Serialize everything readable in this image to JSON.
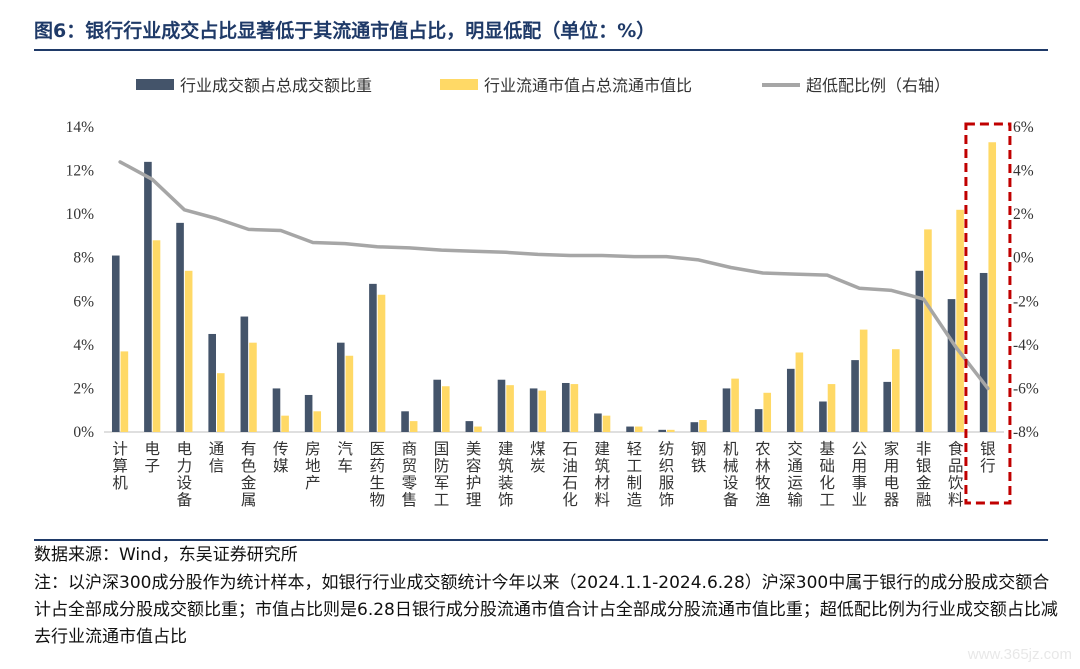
{
  "title": "图6：银行行业成交占比显著低于其流通市值占比，明显低配（单位：%）",
  "source": "数据来源：Wind，东吴证券研究所",
  "note": "注：以沪深300成分股作为统计样本，如银行行业成交额统计今年以来（2024.1.1-2024.6.28）沪深300中属于银行的成分股成交额合计占全部成分股成交额比重；市值占比则是6.28日银行成分股流通市值合计占全部成分股流通市值比重；超低配比例为行业成交额占比减去行业流通市值占比",
  "watermark": "www.365jz.com",
  "chart_data": {
    "type": "bar",
    "categories": [
      "计算机",
      "电子",
      "电力设备",
      "通信",
      "有色金属",
      "传媒",
      "房地产",
      "汽车",
      "医药生物",
      "商贸零售",
      "国防军工",
      "美容护理",
      "建筑装饰",
      "煤炭",
      "石油石化",
      "建筑材料",
      "轻工制造",
      "纺织服饰",
      "钢铁",
      "机械设备",
      "农林牧渔",
      "交通运输",
      "基础化工",
      "公用事业",
      "家用电器",
      "非银金融",
      "食品饮料",
      "银行"
    ],
    "series": [
      {
        "name": "行业成交额占总成交额比重",
        "type": "bar",
        "axis": "left",
        "color": "#44546a",
        "values": [
          8.1,
          12.4,
          9.6,
          4.5,
          5.3,
          2.0,
          1.7,
          4.1,
          6.8,
          0.95,
          2.4,
          0.5,
          2.4,
          2.0,
          2.25,
          0.85,
          0.25,
          0.1,
          0.45,
          2.0,
          1.05,
          2.9,
          1.4,
          3.3,
          2.3,
          7.4,
          6.1,
          7.3
        ]
      },
      {
        "name": "行业流通市值占总流通市值比",
        "type": "bar",
        "axis": "left",
        "color": "#ffd966",
        "values": [
          3.7,
          8.8,
          7.4,
          2.7,
          4.1,
          0.75,
          0.95,
          3.5,
          6.3,
          0.5,
          2.1,
          0.25,
          2.15,
          1.9,
          2.2,
          0.75,
          0.25,
          0.1,
          0.55,
          2.45,
          1.8,
          3.65,
          2.2,
          4.7,
          3.8,
          9.3,
          10.2,
          13.3
        ]
      },
      {
        "name": "超低配比例（右轴）",
        "type": "line",
        "axis": "right",
        "color": "#a6a6a6",
        "values": [
          4.4,
          3.6,
          2.2,
          1.8,
          1.3,
          1.25,
          0.7,
          0.65,
          0.5,
          0.45,
          0.35,
          0.3,
          0.25,
          0.15,
          0.1,
          0.1,
          0.05,
          0.05,
          -0.1,
          -0.45,
          -0.7,
          -0.75,
          -0.8,
          -1.4,
          -1.5,
          -1.9,
          -4.1,
          -6.0
        ]
      }
    ],
    "y_left": {
      "min": 0,
      "max": 14,
      "step": 2,
      "tick_labels": [
        "0%",
        "2%",
        "4%",
        "6%",
        "8%",
        "10%",
        "12%",
        "14%"
      ]
    },
    "y_right": {
      "min": -8,
      "max": 6,
      "step": 2,
      "tick_labels": [
        "-8%",
        "-6%",
        "-4%",
        "-2%",
        "0%",
        "2%",
        "4%",
        "6%"
      ]
    },
    "highlight_category": "银行",
    "highlight_color": "#c00000",
    "grid": false,
    "legend_position": "top"
  }
}
